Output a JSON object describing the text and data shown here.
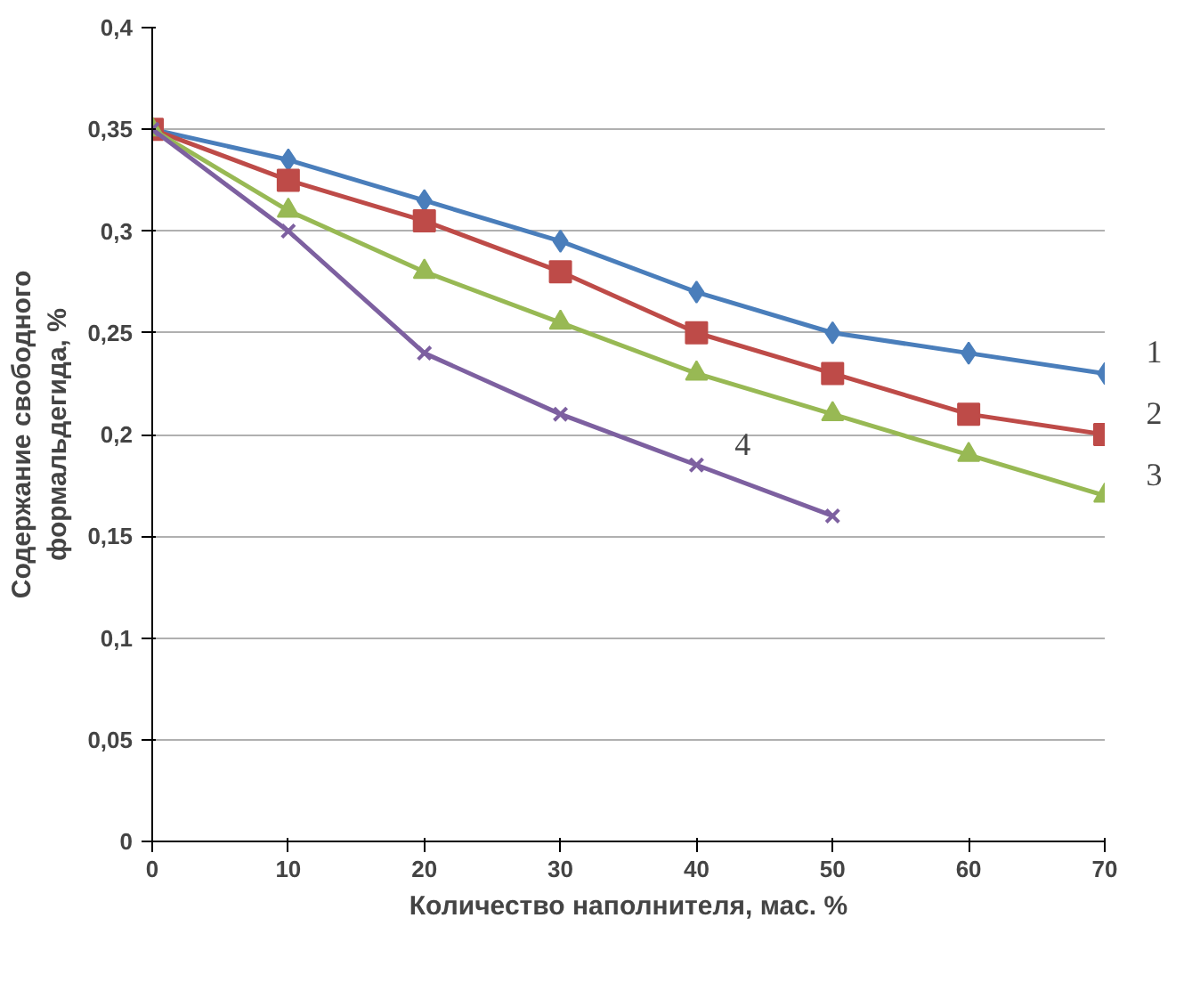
{
  "chart_data": {
    "type": "line",
    "xlabel": "Количество наполнителя, мас. %",
    "ylabel": "Содержание свободного формальдегида, %",
    "x": [
      0,
      10,
      20,
      30,
      40,
      50,
      60,
      70
    ],
    "series": [
      {
        "name": "1",
        "color": "#4a7ebb",
        "marker": "diamond",
        "values": [
          0.35,
          0.335,
          0.315,
          0.295,
          0.27,
          0.25,
          0.24,
          0.23
        ]
      },
      {
        "name": "2",
        "color": "#be4b48",
        "marker": "square",
        "values": [
          0.35,
          0.325,
          0.305,
          0.28,
          0.25,
          0.23,
          0.21,
          0.2
        ]
      },
      {
        "name": "3",
        "color": "#98b954",
        "marker": "triangle",
        "values": [
          0.35,
          0.31,
          0.28,
          0.255,
          0.23,
          0.21,
          0.19,
          0.17
        ]
      },
      {
        "name": "4",
        "color": "#7d60a0",
        "marker": "cross",
        "values": [
          0.35,
          0.3,
          0.24,
          0.21,
          0.185,
          0.16,
          null,
          null
        ]
      }
    ],
    "xlim": [
      0,
      70
    ],
    "ylim": [
      0,
      0.4
    ],
    "xticks": [
      0,
      10,
      20,
      30,
      40,
      50,
      60,
      70
    ],
    "yticks": [
      0,
      {
        "value": 0.05,
        "label": "0,05"
      },
      {
        "value": 0.1,
        "label": "0,1"
      },
      {
        "value": 0.15,
        "label": "0,15"
      },
      {
        "value": 0.2,
        "label": "0,2"
      },
      {
        "value": 0.25,
        "label": "0,25"
      },
      {
        "value": 0.3,
        "label": "0,3"
      },
      {
        "value": 0.35,
        "label": "0,35"
      },
      {
        "value": 0.4,
        "label": "0,4"
      }
    ],
    "grid": "y",
    "line_style": "solid"
  }
}
